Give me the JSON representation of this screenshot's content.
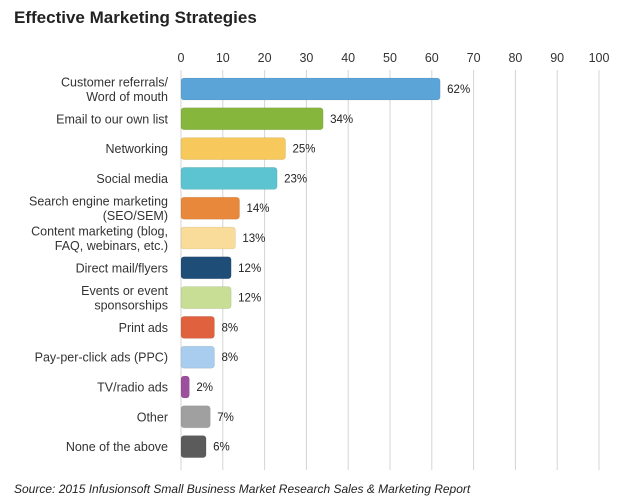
{
  "chart_data": {
    "type": "bar",
    "orientation": "horizontal",
    "title": "Effective Marketing Strategies",
    "xlim": [
      0,
      100
    ],
    "xticks": [
      0,
      10,
      20,
      30,
      40,
      50,
      60,
      70,
      80,
      90,
      100
    ],
    "grid": true,
    "categories": [
      [
        "Customer referrals/",
        "Word of mouth"
      ],
      [
        "Email to our own list"
      ],
      [
        "Networking"
      ],
      [
        "Social media"
      ],
      [
        "Search engine marketing",
        "(SEO/SEM)"
      ],
      [
        "Content marketing (blog,",
        "FAQ, webinars, etc.)"
      ],
      [
        "Direct mail/flyers"
      ],
      [
        "Events or event",
        "sponsorships"
      ],
      [
        "Print ads"
      ],
      [
        "Pay-per-click ads (PPC)"
      ],
      [
        "TV/radio ads"
      ],
      [
        "Other"
      ],
      [
        "None of the above"
      ]
    ],
    "values": [
      62,
      34,
      25,
      23,
      14,
      13,
      12,
      12,
      8,
      8,
      2,
      7,
      6
    ],
    "value_labels": [
      "62%",
      "34%",
      "25%",
      "23%",
      "14%",
      "13%",
      "12%",
      "12%",
      "8%",
      "8%",
      "2%",
      "7%",
      "6%"
    ],
    "colors": [
      "#5ba4d8",
      "#86b63c",
      "#f7c95c",
      "#5cc3d0",
      "#e8883a",
      "#f9dc9a",
      "#1e4d78",
      "#c8de94",
      "#e0613e",
      "#a8cdee",
      "#9b4f9c",
      "#a0a0a0",
      "#5b5b5b"
    ],
    "source": "Source: 2015 Infusionsoft Small Business Market Research Sales & Marketing Report"
  }
}
